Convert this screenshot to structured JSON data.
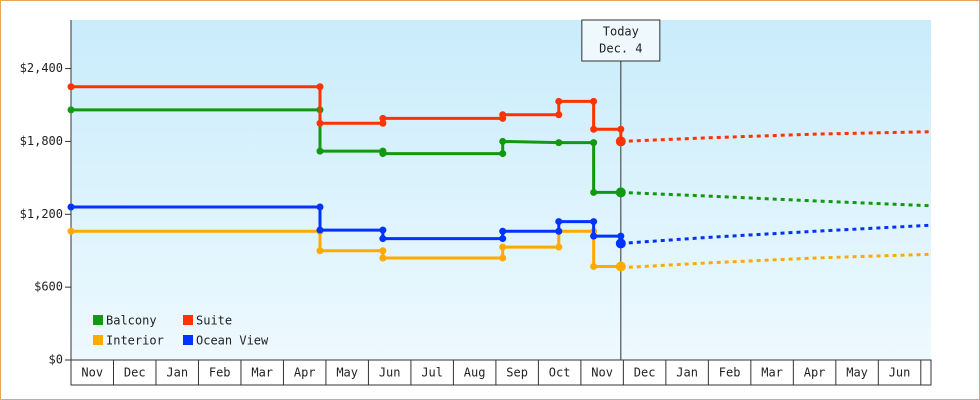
{
  "chart_data": {
    "type": "line",
    "step": true,
    "categories": [
      "Nov",
      "Dec",
      "Jan",
      "Feb",
      "Mar",
      "Apr",
      "May",
      "Jun",
      "Jul",
      "Aug",
      "Sep",
      "Oct",
      "Nov",
      "Dec",
      "Jan",
      "Feb",
      "Mar",
      "Apr",
      "May",
      "Jun"
    ],
    "xlim": [
      0,
      20.24
    ],
    "ylim": [
      0,
      2800
    ],
    "yticks": [
      {
        "value": 0,
        "label": "$0"
      },
      {
        "value": 600,
        "label": "$600"
      },
      {
        "value": 1200,
        "label": "$1,200"
      },
      {
        "value": 1800,
        "label": "$1,800"
      },
      {
        "value": 2400,
        "label": "$2,400"
      }
    ],
    "legend": "lower left",
    "annotation": {
      "text": [
        "Today",
        "Dec. 4"
      ],
      "x": 12.94
    },
    "series": [
      {
        "name": "Balcony",
        "color": "#119911",
        "x": [
          0,
          5.86,
          5.86,
          7.34,
          7.34,
          10.16,
          10.16,
          11.48,
          12.3,
          12.3,
          12.94
        ],
        "values": [
          2060,
          2060,
          1720,
          1720,
          1700,
          1700,
          1800,
          1790,
          1790,
          1380,
          1380
        ],
        "forecast_x": [
          12.94,
          15,
          17.5,
          20.24
        ],
        "forecast": [
          1380,
          1350,
          1310,
          1270
        ]
      },
      {
        "name": "Suite",
        "color": "#ff3300",
        "x": [
          0,
          5.86,
          5.86,
          7.34,
          7.34,
          10.16,
          10.16,
          11.48,
          11.48,
          12.3,
          12.3,
          12.94,
          12.94
        ],
        "values": [
          2250,
          2250,
          1950,
          1950,
          1990,
          1990,
          2020,
          2020,
          2130,
          2130,
          1900,
          1900,
          1800
        ],
        "forecast_x": [
          12.94,
          15,
          17.5,
          20.24
        ],
        "forecast": [
          1800,
          1830,
          1860,
          1880
        ]
      },
      {
        "name": "Interior",
        "color": "#ffaa00",
        "x": [
          0,
          5.86,
          5.86,
          7.34,
          7.34,
          10.16,
          10.16,
          11.48,
          11.48,
          12.3,
          12.3,
          12.94
        ],
        "values": [
          1060,
          1060,
          900,
          900,
          840,
          840,
          930,
          930,
          1060,
          1060,
          770,
          770
        ],
        "forecast_x": [
          12.94,
          15,
          17.5,
          20.24
        ],
        "forecast": [
          760,
          800,
          840,
          870
        ]
      },
      {
        "name": "Ocean View",
        "color": "#0033ff",
        "x": [
          0,
          5.86,
          5.86,
          7.34,
          7.34,
          10.16,
          10.16,
          11.48,
          11.48,
          12.3,
          12.3,
          12.94,
          12.94
        ],
        "values": [
          1260,
          1260,
          1070,
          1070,
          1000,
          1000,
          1060,
          1060,
          1140,
          1140,
          1020,
          1020,
          960
        ],
        "forecast_x": [
          12.94,
          15,
          17.5,
          20.24
        ],
        "forecast": [
          960,
          1010,
          1060,
          1110
        ]
      }
    ]
  }
}
